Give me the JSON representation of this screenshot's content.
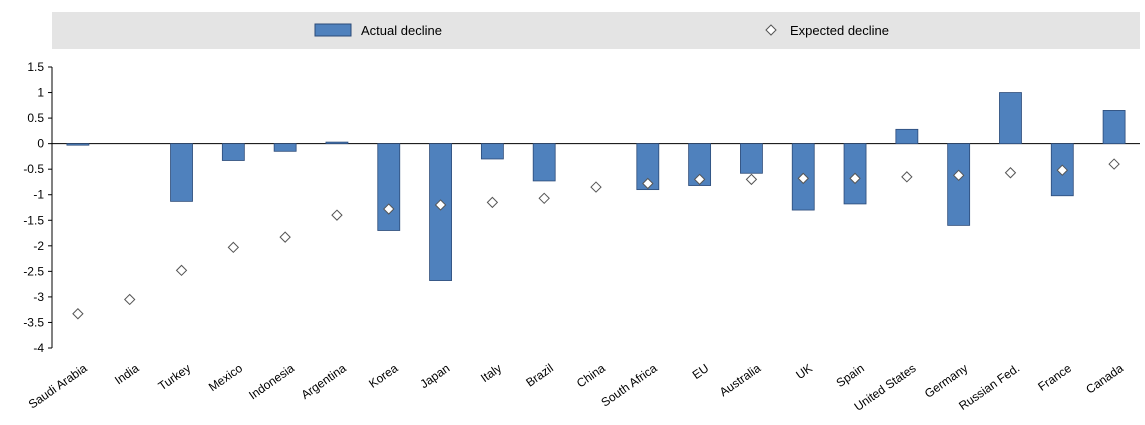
{
  "chart_data": {
    "type": "bar",
    "categories": [
      "Saudi Arabia",
      "India",
      "Turkey",
      "Mexico",
      "Indonesia",
      "Argentina",
      "Korea",
      "Japan",
      "Italy",
      "Brazil",
      "China",
      "South Africa",
      "EU",
      "Australia",
      "UK",
      "Spain",
      "United States",
      "Germany",
      "Russian Fed.",
      "France",
      "Canada"
    ],
    "series": [
      {
        "name": "Actual decline",
        "type": "bar",
        "color": "#4f81bd",
        "values": [
          -0.03,
          null,
          -1.13,
          -0.33,
          -0.15,
          0.03,
          -1.7,
          -2.68,
          -0.3,
          -0.73,
          null,
          -0.9,
          -0.82,
          -0.58,
          -1.3,
          -1.18,
          0.28,
          -1.6,
          1.0,
          -1.02,
          0.65
        ]
      },
      {
        "name": "Expected decline",
        "type": "marker",
        "marker": "diamond",
        "values": [
          -3.33,
          -3.05,
          -2.48,
          -2.03,
          -1.83,
          -1.4,
          -1.28,
          -1.2,
          -1.15,
          -1.07,
          -0.85,
          -0.78,
          -0.7,
          -0.7,
          -0.68,
          -0.68,
          -0.65,
          -0.62,
          -0.57,
          -0.52,
          -0.4
        ]
      }
    ],
    "title": "",
    "xlabel": "",
    "ylabel": "",
    "ylim": [
      -4,
      1.5
    ],
    "yticks": [
      "1.5",
      "1",
      "0.5",
      "0",
      "-0.5",
      "-1",
      "-1.5",
      "-2",
      "-2.5",
      "-3",
      "-3.5",
      "-4"
    ],
    "grid": false,
    "legend_position": "top"
  },
  "legend": {
    "actual_label": "Actual decline",
    "expected_label": "Expected decline",
    "background": "#e4e4e4"
  }
}
